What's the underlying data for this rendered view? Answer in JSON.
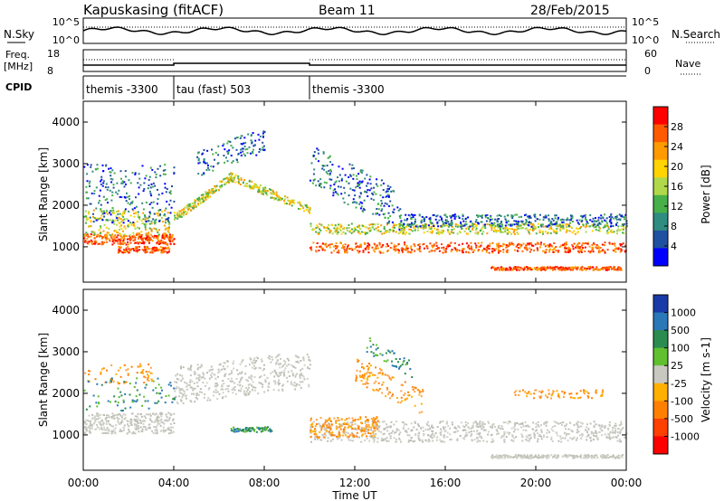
{
  "header": {
    "station": "Kapuskasing (fitACF)",
    "beam": "Beam 11",
    "date": "28/Feb/2015"
  },
  "side_labels": {
    "nsky": "N.Sky",
    "nsearch": "N.Search",
    "freq_top": "Freq.",
    "freq_unit": "[MHz]",
    "nave": "Nave",
    "cpid": "CPID"
  },
  "chart_data": [
    {
      "type": "line",
      "name": "noise",
      "y_ticks_left": [
        "10^5",
        "10^0"
      ],
      "y_ticks_right": [
        "10^5",
        "10^0"
      ]
    },
    {
      "type": "line",
      "name": "frequency-nave",
      "y_ticks_left": [
        "18",
        "8"
      ],
      "y_ticks_right": [
        "60",
        "0"
      ]
    },
    {
      "type": "table",
      "name": "cpid",
      "segments": [
        {
          "label": "themis -3300",
          "start_hour": 0,
          "end_hour": 4
        },
        {
          "label": "tau (fast) 503",
          "start_hour": 4,
          "end_hour": 10
        },
        {
          "label": "themis -3300",
          "start_hour": 10,
          "end_hour": 24
        }
      ]
    },
    {
      "type": "heatmap",
      "name": "power",
      "ylabel": "Slant Range [km]",
      "y_ticks": [
        1000,
        2000,
        3000,
        4000
      ],
      "ylim": [
        150,
        4500
      ],
      "colorbar_label": "Power [dB]",
      "colorbar_ticks": [
        "28",
        "24",
        "20",
        "16",
        "12",
        "8",
        "4"
      ],
      "colorbar_colors": [
        "#ff0000",
        "#ff5a00",
        "#ff9a00",
        "#ffd400",
        "#b0d84a",
        "#48b048",
        "#2e8c80",
        "#2050a0",
        "#0000ff"
      ]
    },
    {
      "type": "heatmap",
      "name": "velocity",
      "ylabel": "Slant Range [km]",
      "y_ticks": [
        1000,
        2000,
        3000,
        4000
      ],
      "ylim": [
        150,
        4500
      ],
      "colorbar_label": "Velocity [m s-1]",
      "colorbar_ticks": [
        "1000",
        "500",
        "100",
        "25",
        "-25",
        "-100",
        "-500",
        "-1000"
      ],
      "colorbar_colors": [
        "#1a3aa8",
        "#2a78b8",
        "#2c8c50",
        "#60c030",
        "#c8c8c0",
        "#ffb000",
        "#ff8000",
        "#ff4000",
        "#ff0000"
      ]
    }
  ],
  "x_axis": {
    "xlabel": "Time UT",
    "ticks": [
      "00:00",
      "04:00",
      "08:00",
      "12:00",
      "16:00",
      "20:00",
      "00:00"
    ],
    "xlim": [
      0,
      24
    ]
  }
}
